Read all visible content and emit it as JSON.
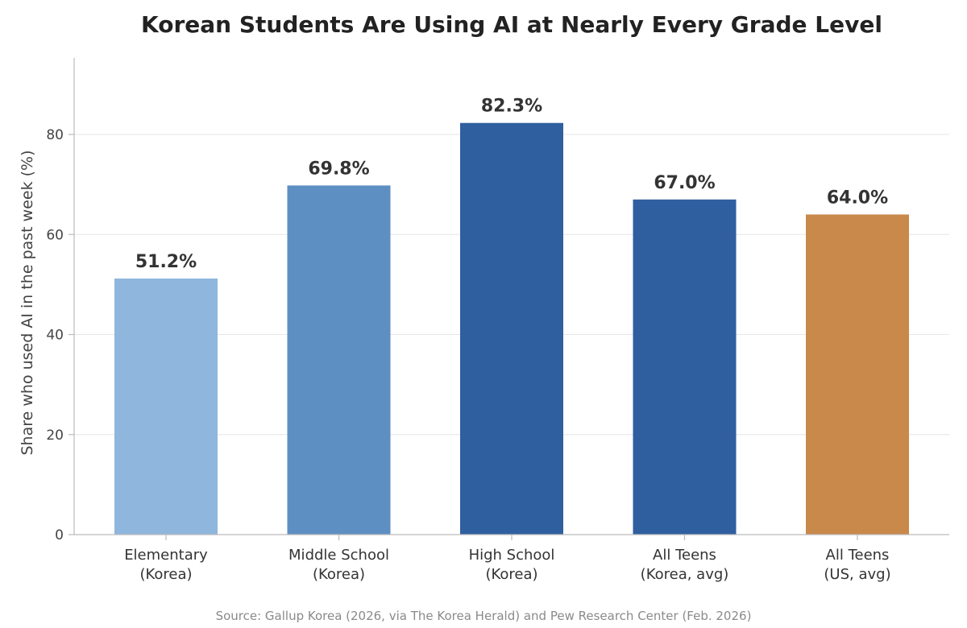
{
  "chart_data": {
    "type": "bar",
    "title": "Korean Students Are Using AI at Nearly Every Grade Level",
    "ylabel": "Share who used AI in the past week (%)",
    "xlabel": "",
    "ylim": [
      0,
      95
    ],
    "yticks": [
      0,
      20,
      40,
      60,
      80
    ],
    "grid": "horizontal",
    "categories": [
      [
        "Elementary",
        "(Korea)"
      ],
      [
        "Middle School",
        "(Korea)"
      ],
      [
        "High School",
        "(Korea)"
      ],
      [
        "All Teens",
        "(Korea, avg)"
      ],
      [
        "All Teens",
        "(US, avg)"
      ]
    ],
    "values": [
      51.2,
      69.8,
      82.3,
      67.0,
      64.0
    ],
    "data_labels": [
      "51.2%",
      "69.8%",
      "82.3%",
      "67.0%",
      "64.0%"
    ],
    "colors": [
      "#8fb6dc",
      "#5e8fc2",
      "#2f5f9f",
      "#2f5f9f",
      "#c8894b"
    ],
    "source": "Source: Gallup Korea (2026, via The Korea Herald) and Pew Research Center (Feb. 2026)"
  }
}
